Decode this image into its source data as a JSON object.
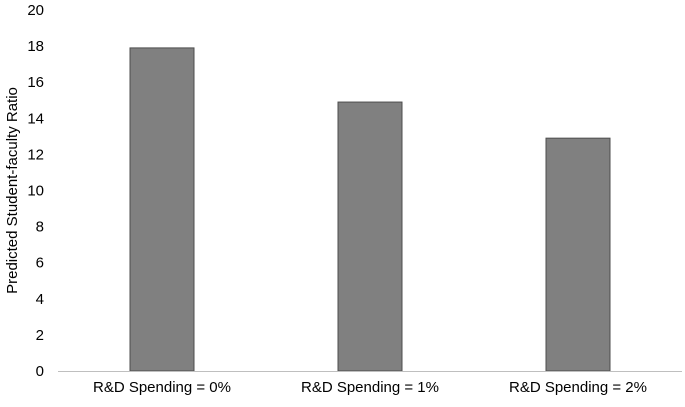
{
  "chart_data": {
    "type": "bar",
    "title": "",
    "xlabel": "",
    "ylabel": "Predicted Student-faculty Ratio",
    "categories": [
      "R&D Spending = 0%",
      "R&D Spending = 1%",
      "R&D Spending = 2%"
    ],
    "values": [
      17.9,
      14.9,
      12.9
    ],
    "ylim": [
      0,
      20
    ],
    "yticks": [
      0,
      2,
      4,
      6,
      8,
      10,
      12,
      14,
      16,
      18,
      20
    ],
    "grid": false,
    "legend": "none",
    "bar_color": "#808080",
    "bar_edge_color": "#4d4d4d",
    "axis_color": "#bfbfbf"
  }
}
